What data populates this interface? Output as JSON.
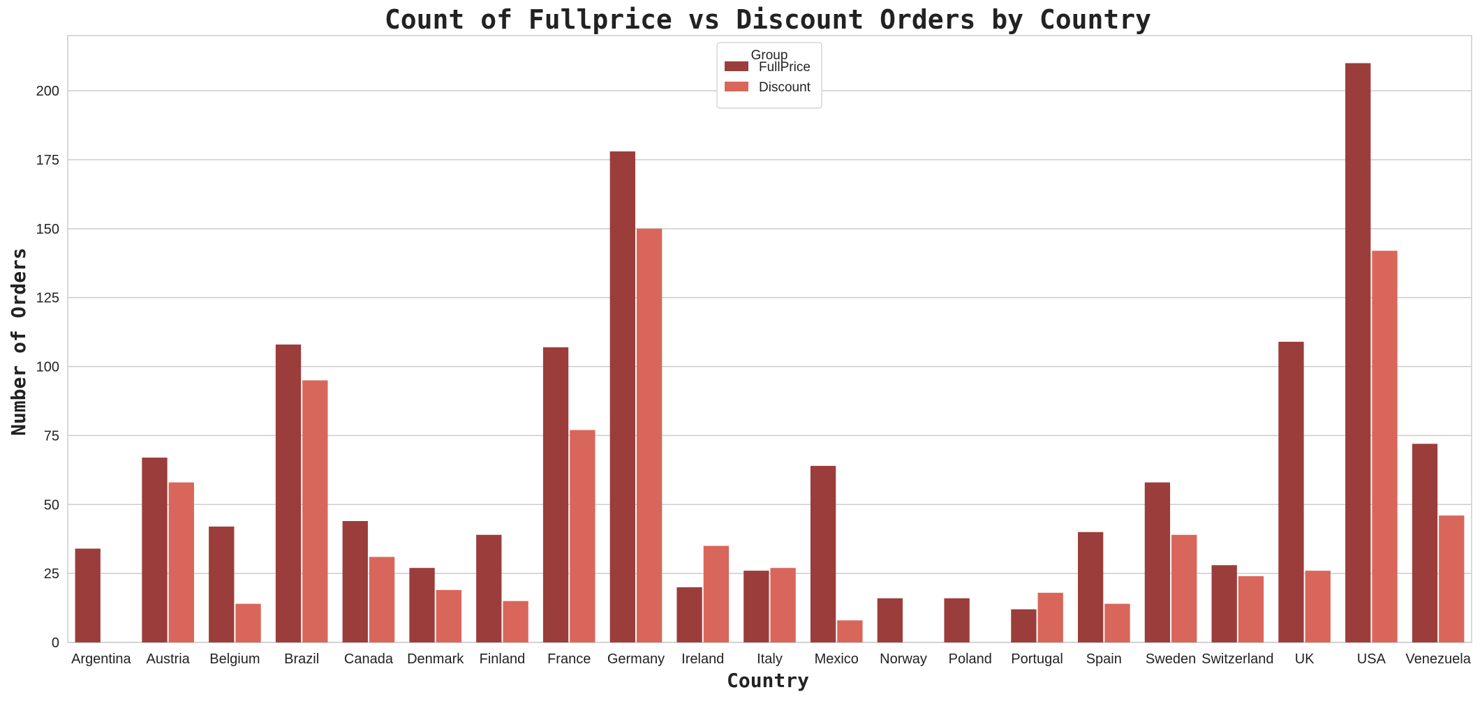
{
  "chart_data": {
    "type": "bar",
    "title": "Count of Fullprice vs Discount Orders by Country",
    "xlabel": "Country",
    "ylabel": "Number of Orders",
    "ylim": [
      0,
      220
    ],
    "yticks": [
      0,
      25,
      50,
      75,
      100,
      125,
      150,
      175,
      200
    ],
    "grid": true,
    "legend": {
      "title": "Group",
      "placement": "top-center"
    },
    "categories": [
      "Argentina",
      "Austria",
      "Belgium",
      "Brazil",
      "Canada",
      "Denmark",
      "Finland",
      "France",
      "Germany",
      "Ireland",
      "Italy",
      "Mexico",
      "Norway",
      "Poland",
      "Portugal",
      "Spain",
      "Sweden",
      "Switzerland",
      "UK",
      "USA",
      "Venezuela"
    ],
    "series": [
      {
        "name": "FullPrice",
        "color": "#9b3d3a",
        "values": [
          34,
          67,
          42,
          108,
          44,
          27,
          39,
          107,
          178,
          20,
          26,
          64,
          16,
          16,
          12,
          40,
          58,
          28,
          109,
          210,
          72
        ]
      },
      {
        "name": "Discount",
        "color": "#d9665a",
        "values": [
          0,
          58,
          14,
          95,
          31,
          19,
          15,
          77,
          150,
          35,
          27,
          8,
          0,
          0,
          18,
          14,
          39,
          24,
          26,
          142,
          46
        ]
      }
    ]
  }
}
